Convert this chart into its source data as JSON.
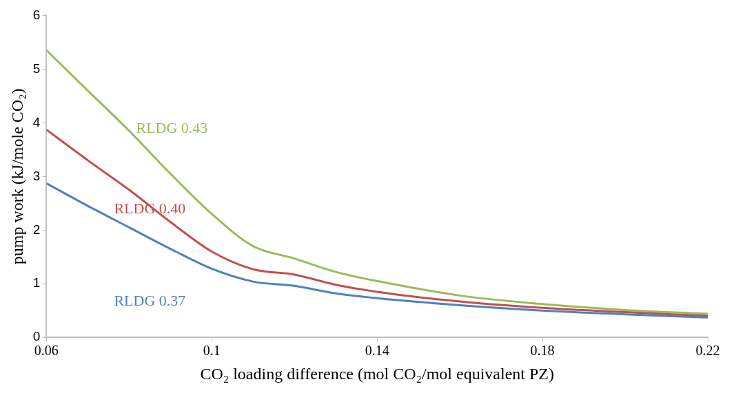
{
  "chart_data": {
    "type": "line",
    "xlabel": "CO₂ loading difference (mol CO₂/mol equivalent PZ)",
    "ylabel": "pump work (kJ/mole CO₂)",
    "x": [
      0.06,
      0.07,
      0.08,
      0.09,
      0.1,
      0.11,
      0.12,
      0.13,
      0.14,
      0.16,
      0.18,
      0.2,
      0.22
    ],
    "xlim": [
      0.06,
      0.22
    ],
    "xticks": [
      0.06,
      0.1,
      0.14,
      0.18,
      0.22
    ],
    "ylim": [
      0,
      6
    ],
    "yticks": [
      0,
      1,
      2,
      3,
      4,
      5,
      6
    ],
    "grid": false,
    "legend": false,
    "marker": "none",
    "line_style": "solid",
    "series": [
      {
        "name": "RLDG 0.37",
        "color": "#4f81bd",
        "values": [
          2.87,
          2.45,
          2.05,
          1.65,
          1.28,
          1.04,
          0.96,
          0.82,
          0.73,
          0.6,
          0.5,
          0.43,
          0.37
        ]
      },
      {
        "name": "RLDG 0.40",
        "color": "#c0504d",
        "values": [
          3.87,
          3.3,
          2.75,
          2.15,
          1.6,
          1.27,
          1.17,
          0.98,
          0.85,
          0.67,
          0.55,
          0.47,
          0.4
        ]
      },
      {
        "name": "RLDG 0.43",
        "color": "#9bbb59",
        "values": [
          5.35,
          4.6,
          3.85,
          3.05,
          2.3,
          1.7,
          1.47,
          1.22,
          1.05,
          0.78,
          0.62,
          0.51,
          0.44
        ]
      }
    ]
  }
}
